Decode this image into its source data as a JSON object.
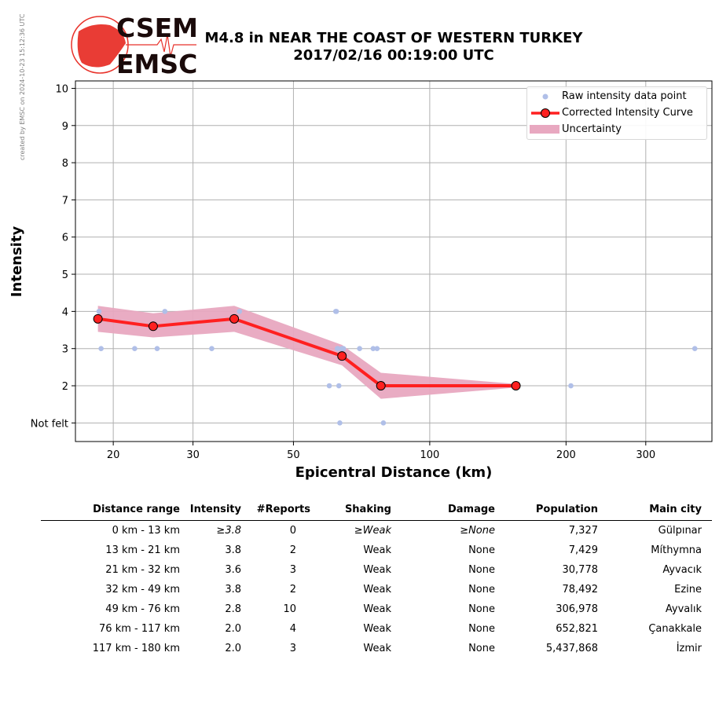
{
  "side_note": "created by EMSC on 2024-10-23 15:12:36 UTC",
  "logo": {
    "text_top": "CSEM",
    "text_bottom": "EMSC"
  },
  "title": {
    "line1": "M4.8 in NEAR THE COAST OF WESTERN TURKEY",
    "line2": "2017/02/16 00:19:00 UTC"
  },
  "legend": {
    "raw": "Raw intensity data point",
    "curve": "Corrected Intensity Curve",
    "uncertainty": "Uncertainty"
  },
  "colors": {
    "raw_points": "#b0bfe8",
    "curve": "#ff2020",
    "uncertainty": "#e8a8c0",
    "grid": "#b0b0b0",
    "logo_red": "#e8322a"
  },
  "chart_data": {
    "type": "line",
    "xlabel": "Epicentral Distance (km)",
    "ylabel": "Intensity",
    "x_scale": "log",
    "xlim": [
      16.5,
      420
    ],
    "ylim": [
      0.5,
      10.2
    ],
    "x_ticks": [
      20,
      30,
      50,
      100,
      200,
      300
    ],
    "y_ticks": [
      1,
      2,
      3,
      4,
      5,
      6,
      7,
      8,
      9,
      10
    ],
    "y_tick_labels": [
      "Not felt",
      "2",
      "3",
      "4",
      "5",
      "6",
      "7",
      "8",
      "9",
      "10"
    ],
    "grid": true,
    "legend_position": "top-right",
    "series": [
      {
        "name": "Corrected Intensity Curve",
        "x": [
          18.5,
          24.5,
          37,
          64,
          78,
          155
        ],
        "y": [
          3.8,
          3.6,
          3.8,
          2.8,
          2.0,
          2.0
        ],
        "upper": [
          4.15,
          3.95,
          4.15,
          3.1,
          2.35,
          2.05
        ],
        "lower": [
          3.45,
          3.3,
          3.45,
          2.55,
          1.65,
          1.95
        ]
      },
      {
        "name": "Raw intensity data point",
        "x": [
          18.6,
          18.8,
          22.3,
          25,
          26,
          33,
          38,
          60,
          62,
          62.2,
          62.5,
          62.7,
          63,
          63.3,
          64,
          64.5,
          70,
          75,
          76.5,
          79,
          205,
          385
        ],
        "y": [
          4,
          3,
          3,
          3,
          4,
          3,
          4,
          2,
          4,
          4,
          3,
          3,
          2,
          1,
          3,
          3,
          3,
          3,
          3,
          1,
          2,
          3
        ]
      }
    ]
  },
  "table": {
    "headers": [
      "Distance range",
      "Intensity",
      "#Reports",
      "Shaking",
      "Damage",
      "Population",
      "Main city"
    ],
    "rows": [
      [
        "0 km -   13 km",
        "≥3.8",
        "0",
        "≥Weak",
        "≥None",
        "7,327",
        "Gülpınar"
      ],
      [
        "13 km -   21 km",
        "3.8",
        "2",
        "Weak",
        "None",
        "7,429",
        "Míthymna"
      ],
      [
        "21 km -   32 km",
        "3.6",
        "3",
        "Weak",
        "None",
        "30,778",
        "Ayvacık"
      ],
      [
        "32 km -   49 km",
        "3.8",
        "2",
        "Weak",
        "None",
        "78,492",
        "Ezine"
      ],
      [
        "49 km -   76 km",
        "2.8",
        "10",
        "Weak",
        "None",
        "306,978",
        "Ayvalık"
      ],
      [
        "76 km -  117 km",
        "2.0",
        "4",
        "Weak",
        "None",
        "652,821",
        "Çanakkale"
      ],
      [
        "117 km -  180 km",
        "2.0",
        "3",
        "Weak",
        "None",
        "5,437,868",
        "İzmir"
      ]
    ]
  }
}
